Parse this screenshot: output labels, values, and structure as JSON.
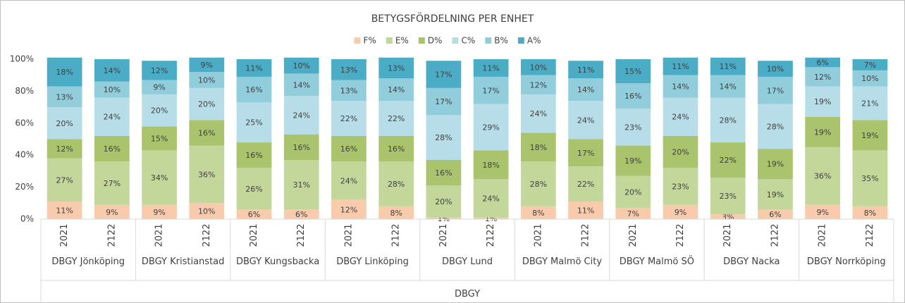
{
  "chart_data": {
    "type": "stacked_bar",
    "title": "BETYGSFÖRDELNING PER ENHET",
    "categories": [
      "2021",
      "2122",
      "2021",
      "2122",
      "2021",
      "2122",
      "2021",
      "2122",
      "2021",
      "2122",
      "2021",
      "2122",
      "2021",
      "2122",
      "2021",
      "2122",
      "2021",
      "2122"
    ],
    "groups": [
      "DBGY Jönköping",
      "DBGY Kristianstad",
      "DBGY Kungsbacka",
      "DBGY Linköping",
      "DBGY Lund",
      "DBGY Malmö City",
      "DBGY Malmö SÖ",
      "DBGY Nacka",
      "DBGY Norrköping"
    ],
    "top_group": "DBGY",
    "ylim": [
      0,
      100
    ],
    "yticks": [
      {
        "value": 0,
        "label": "0%"
      },
      {
        "value": 20,
        "label": "20%"
      },
      {
        "value": 40,
        "label": "40%"
      },
      {
        "value": 60,
        "label": "60%"
      },
      {
        "value": 80,
        "label": "80%"
      },
      {
        "value": 100,
        "label": "100%"
      }
    ],
    "legend": "top",
    "series": [
      {
        "name": "F%",
        "color": "#f8cbad",
        "values": [
          11,
          9,
          9,
          10,
          6,
          6,
          12,
          8,
          1,
          1,
          8,
          11,
          7,
          9,
          3,
          6,
          9,
          8
        ],
        "value_labels": [
          "11%",
          "9%",
          "9%",
          "10%",
          "6%",
          "6%",
          "12%",
          "8%",
          "1%",
          "1%",
          "8%",
          "11%",
          "7%",
          "9%",
          "3%",
          "6%",
          "9%",
          "8%"
        ]
      },
      {
        "name": "E%",
        "color": "#c4d79b",
        "values": [
          27,
          27,
          34,
          36,
          26,
          31,
          24,
          28,
          20,
          24,
          28,
          22,
          20,
          23,
          23,
          19,
          36,
          35
        ],
        "value_labels": [
          "27%",
          "27%",
          "34%",
          "36%",
          "26%",
          "31%",
          "24%",
          "28%",
          "20%",
          "24%",
          "28%",
          "22%",
          "20%",
          "23%",
          "23%",
          "19%",
          "36%",
          "35%"
        ]
      },
      {
        "name": "D%",
        "color": "#a9c46c",
        "values": [
          12,
          16,
          15,
          16,
          16,
          16,
          16,
          16,
          16,
          18,
          18,
          17,
          19,
          20,
          22,
          19,
          19,
          19
        ],
        "value_labels": [
          "12%",
          "16%",
          "15%",
          "16%",
          "16%",
          "16%",
          "16%",
          "16%",
          "16%",
          "18%",
          "18%",
          "17%",
          "19%",
          "20%",
          "22%",
          "19%",
          "19%",
          "19%"
        ]
      },
      {
        "name": "C%",
        "color": "#b7dee8",
        "values": [
          20,
          24,
          20,
          20,
          25,
          24,
          22,
          22,
          28,
          29,
          24,
          24,
          23,
          24,
          28,
          28,
          19,
          21
        ],
        "value_labels": [
          "20%",
          "24%",
          "20%",
          "20%",
          "25%",
          "24%",
          "22%",
          "22%",
          "28%",
          "29%",
          "24%",
          "24%",
          "23%",
          "24%",
          "28%",
          "28%",
          "19%",
          "21%"
        ]
      },
      {
        "name": "B%",
        "color": "#92cddc",
        "values": [
          13,
          10,
          9,
          10,
          16,
          14,
          13,
          14,
          17,
          17,
          12,
          14,
          16,
          14,
          14,
          17,
          12,
          10
        ],
        "value_labels": [
          "13%",
          "10%",
          "9%",
          "10%",
          "16%",
          "14%",
          "13%",
          "14%",
          "17%",
          "17%",
          "12%",
          "14%",
          "16%",
          "14%",
          "14%",
          "17%",
          "12%",
          "10%"
        ]
      },
      {
        "name": "A%",
        "color": "#4bacc6",
        "values": [
          18,
          14,
          12,
          9,
          11,
          10,
          13,
          13,
          17,
          11,
          10,
          11,
          15,
          11,
          11,
          10,
          6,
          7
        ],
        "value_labels": [
          "18%",
          "14%",
          "12%",
          "9%",
          "11%",
          "10%",
          "13%",
          "13%",
          "17%",
          "11%",
          "10%",
          "11%",
          "15%",
          "11%",
          "11%",
          "10%",
          "6%",
          "7%"
        ]
      }
    ]
  }
}
